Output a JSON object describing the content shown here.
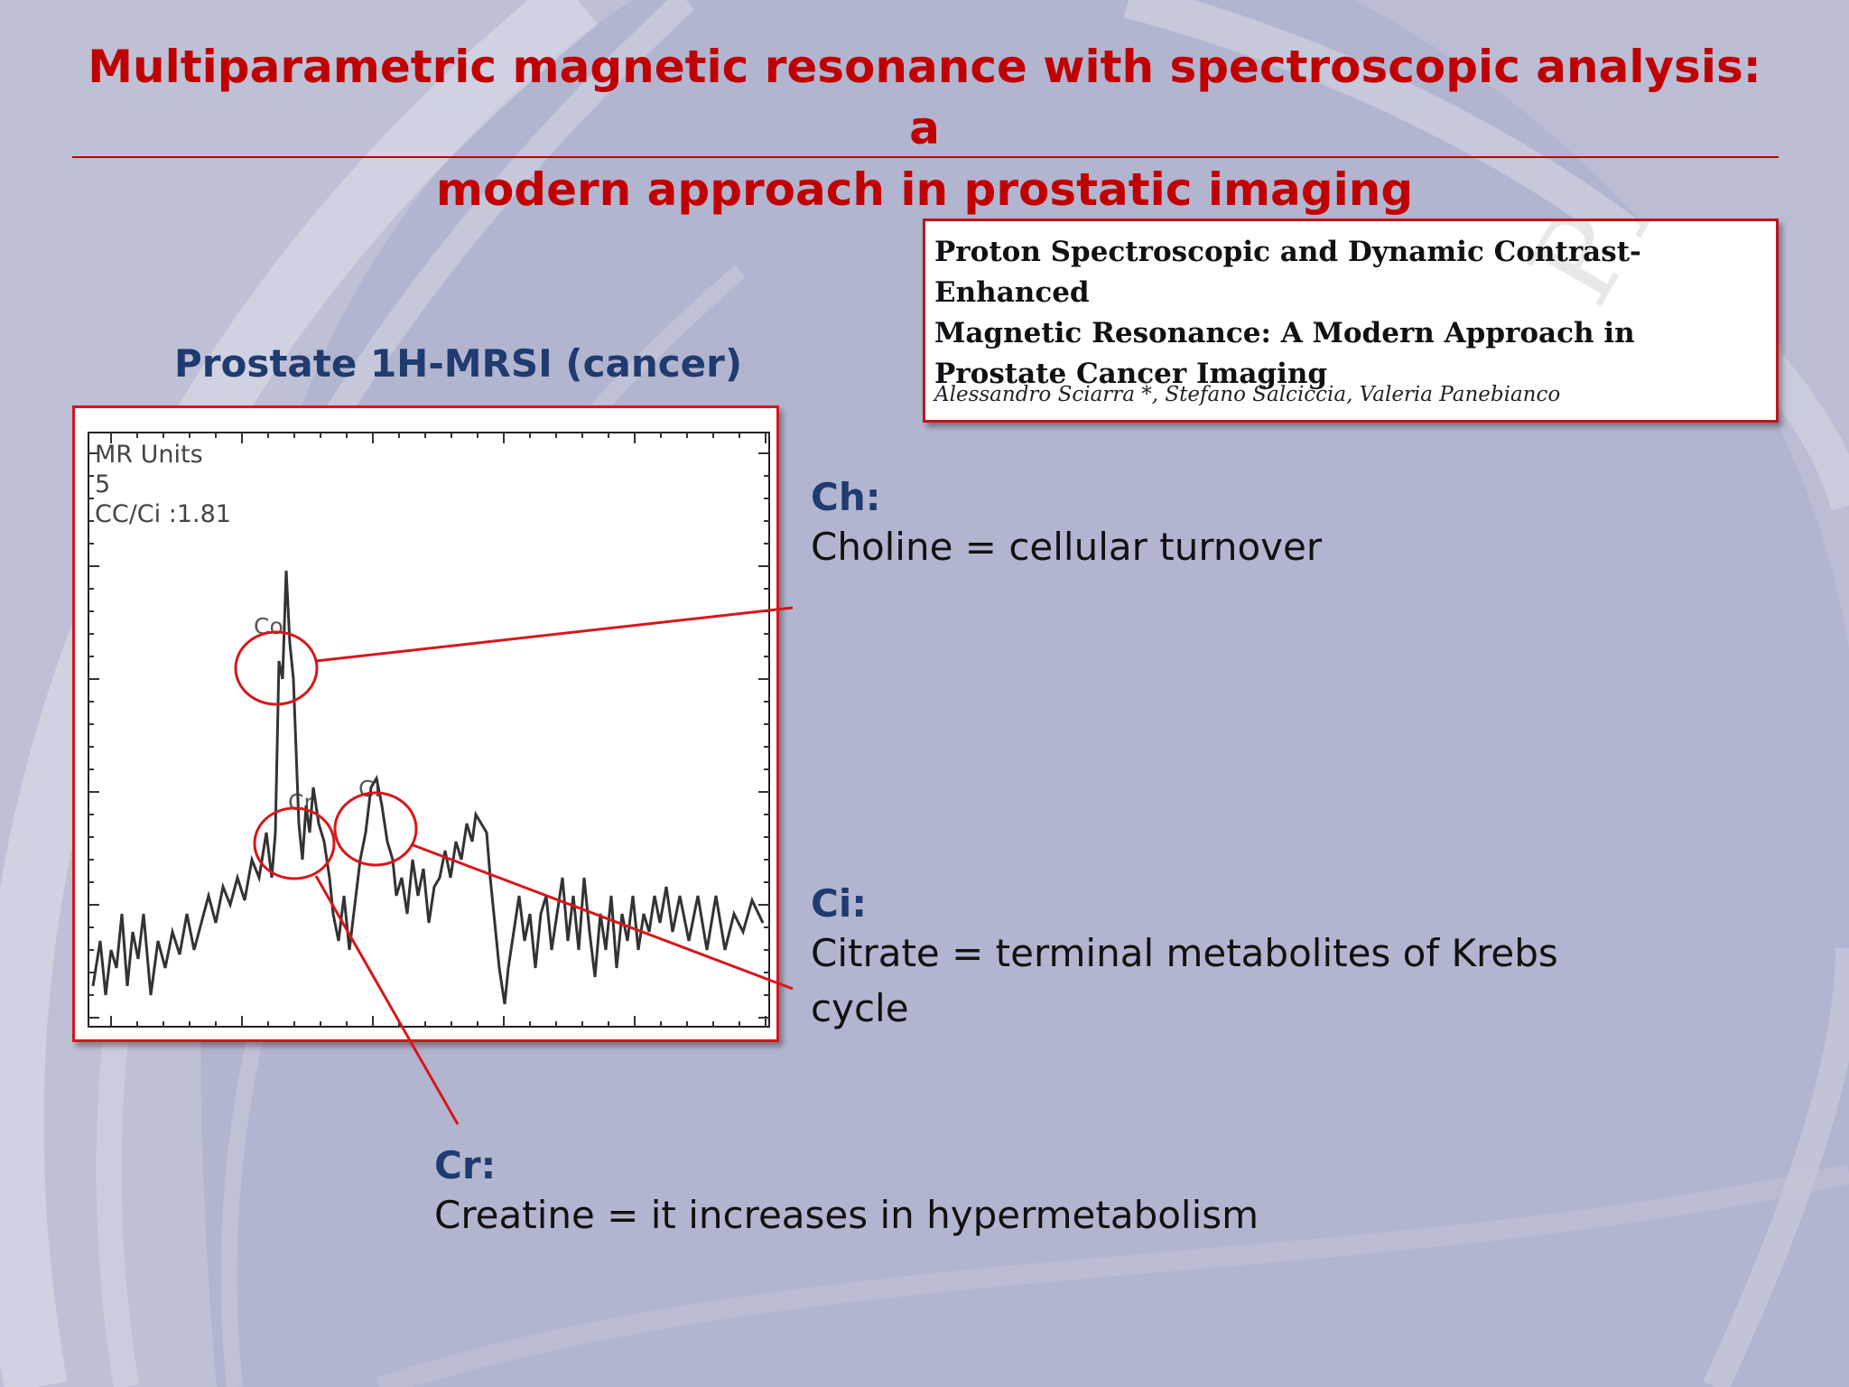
{
  "slide": {
    "title_line1": "Multiparametric magnetic resonance with spectroscopic analysis: a",
    "title_line2": "modern approach in prostatic imaging"
  },
  "spectrum": {
    "label": "Prostate 1H-MRSI (cancer)",
    "header_line1": "MR Units",
    "header_line2": "5",
    "header_line3": "CC/Ci :1.81",
    "peak_co": "Co",
    "peak_cr": "Cr",
    "peak_ci": "Ci"
  },
  "reference": {
    "title_line1": "Proton Spectroscopic and Dynamic Contrast-Enhanced",
    "title_line2": "Magnetic Resonance: A Modern Approach in",
    "title_line3": "Prostate Cancer Imaging",
    "authors": "Alessandro Sciarra *, Stefano Salciccia, Valeria Panebianco",
    "watermark": "PRO"
  },
  "definitions": {
    "ch_head": "Ch:",
    "ch_text": "Choline = cellular turnover",
    "ci_head": "Ci:",
    "ci_text_line1": "Citrate = terminal metabolites of Krebs",
    "ci_text_line2": "cycle",
    "cr_head": "Cr:",
    "cr_text": "Creatine = it increases in hypermetabolism"
  },
  "colors": {
    "title": "#c00000",
    "heading": "#1f3b70",
    "annotation": "#d6171c",
    "background": "#b2b5cf"
  }
}
